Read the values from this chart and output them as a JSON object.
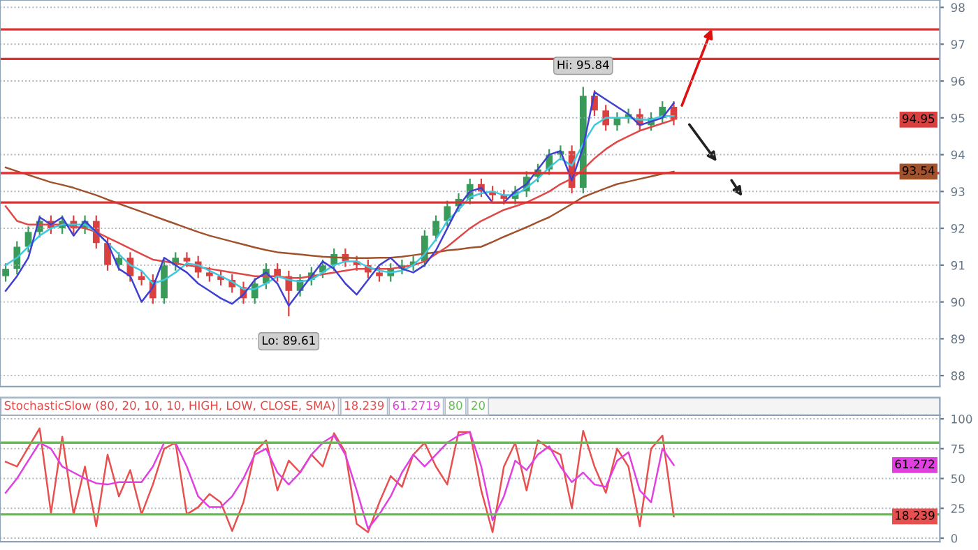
{
  "chart_data": [
    {
      "type": "candlestick",
      "categories": [
        null,
        null,
        null,
        null,
        null,
        null,
        null,
        null,
        null,
        null,
        null,
        null,
        null,
        null,
        null,
        null,
        null,
        null,
        null,
        null,
        null,
        null,
        null,
        null,
        null,
        null,
        null,
        null,
        null,
        null,
        null,
        null,
        null,
        null,
        null,
        null,
        null,
        null,
        null,
        null,
        null,
        null,
        null,
        null,
        null,
        null,
        null,
        null,
        null,
        null,
        null,
        null,
        null,
        null,
        null,
        null,
        null,
        null,
        null,
        null,
        null,
        null,
        null,
        null,
        null,
        null,
        null,
        null,
        null,
        null,
        null,
        null,
        null,
        null,
        null,
        null,
        null,
        null,
        null,
        null,
        null,
        null,
        null
      ],
      "ohlc": [
        [
          90.7,
          91.05,
          90.55,
          90.9
        ],
        [
          90.9,
          91.65,
          90.75,
          91.5
        ],
        [
          91.5,
          92.05,
          91.35,
          91.9
        ],
        [
          91.9,
          92.35,
          91.75,
          92.2
        ],
        [
          92.2,
          92.35,
          91.85,
          92.0
        ],
        [
          92.0,
          92.35,
          91.85,
          92.2
        ],
        [
          92.2,
          92.35,
          91.85,
          92.0
        ],
        [
          92.0,
          92.35,
          91.85,
          92.2
        ],
        [
          92.2,
          92.35,
          91.45,
          91.6
        ],
        [
          91.6,
          91.75,
          90.85,
          91.0
        ],
        [
          91.0,
          91.35,
          90.85,
          91.2
        ],
        [
          91.2,
          91.35,
          90.55,
          90.7
        ],
        [
          90.7,
          90.85,
          90.45,
          90.6
        ],
        [
          90.6,
          90.75,
          89.95,
          90.1
        ],
        [
          90.1,
          91.15,
          89.95,
          91.0
        ],
        [
          91.0,
          91.35,
          90.85,
          91.2
        ],
        [
          91.2,
          91.35,
          90.95,
          91.1
        ],
        [
          91.1,
          91.25,
          90.65,
          90.8
        ],
        [
          90.8,
          90.95,
          90.55,
          90.7
        ],
        [
          90.7,
          90.85,
          90.45,
          90.6
        ],
        [
          90.6,
          90.75,
          90.25,
          90.4
        ],
        [
          90.4,
          90.55,
          89.95,
          90.1
        ],
        [
          90.1,
          90.65,
          89.95,
          90.5
        ],
        [
          90.5,
          91.05,
          90.35,
          90.9
        ],
        [
          90.9,
          91.05,
          90.55,
          90.7
        ],
        [
          90.7,
          90.85,
          89.61,
          90.3
        ],
        [
          90.3,
          90.75,
          90.15,
          90.6
        ],
        [
          90.6,
          90.95,
          90.45,
          90.8
        ],
        [
          90.8,
          91.15,
          90.65,
          91.0
        ],
        [
          91.0,
          91.45,
          90.85,
          91.3
        ],
        [
          91.3,
          91.45,
          90.95,
          91.1
        ],
        [
          91.1,
          91.25,
          90.85,
          91.0
        ],
        [
          91.0,
          91.15,
          90.65,
          90.8
        ],
        [
          90.8,
          90.95,
          90.55,
          90.7
        ],
        [
          90.7,
          91.05,
          90.55,
          90.9
        ],
        [
          90.9,
          91.15,
          90.75,
          91.0
        ],
        [
          91.0,
          91.25,
          90.85,
          91.1
        ],
        [
          91.1,
          91.95,
          90.95,
          91.8
        ],
        [
          91.8,
          92.35,
          91.65,
          92.2
        ],
        [
          92.2,
          92.75,
          92.05,
          92.6
        ],
        [
          92.6,
          92.95,
          92.45,
          92.8
        ],
        [
          92.8,
          93.35,
          92.65,
          93.2
        ],
        [
          93.2,
          93.35,
          92.85,
          93.0
        ],
        [
          93.0,
          93.15,
          92.75,
          92.9
        ],
        [
          92.9,
          93.05,
          92.65,
          92.8
        ],
        [
          92.8,
          93.15,
          92.65,
          93.0
        ],
        [
          93.0,
          93.55,
          92.85,
          93.4
        ],
        [
          93.4,
          93.75,
          93.25,
          93.6
        ],
        [
          93.6,
          94.15,
          93.45,
          94.0
        ],
        [
          94.0,
          94.25,
          93.85,
          94.1
        ],
        [
          94.1,
          94.25,
          92.95,
          93.1
        ],
        [
          93.1,
          95.84,
          92.95,
          95.6
        ],
        [
          95.6,
          95.75,
          95.05,
          95.2
        ],
        [
          95.2,
          95.35,
          94.65,
          94.8
        ],
        [
          94.8,
          95.15,
          94.65,
          95.0
        ],
        [
          95.0,
          95.25,
          94.85,
          95.1
        ],
        [
          95.1,
          95.25,
          94.65,
          94.8
        ],
        [
          94.8,
          95.15,
          94.65,
          95.0
        ],
        [
          95.0,
          95.45,
          94.85,
          95.3
        ],
        [
          95.3,
          95.45,
          94.8,
          94.95
        ],
        null,
        null,
        null,
        null,
        null,
        null,
        null,
        null,
        null,
        null,
        null,
        null,
        null,
        null,
        null,
        null,
        null,
        null,
        null,
        null,
        null,
        null,
        null
      ],
      "series": [
        {
          "type": "line",
          "color": "#a0522d",
          "values": [
            93.65,
            93.55,
            93.45,
            93.35,
            93.25,
            93.18,
            93.1,
            93.0,
            92.9,
            92.78,
            92.67,
            92.56,
            92.45,
            92.34,
            92.23,
            92.12,
            92.01,
            91.9,
            91.8,
            91.72,
            91.64,
            91.56,
            91.48,
            91.41,
            91.35,
            91.32,
            91.29,
            91.26,
            91.23,
            91.21,
            91.2,
            91.19,
            91.19,
            91.2,
            91.2,
            91.23,
            91.27,
            91.31,
            91.35,
            91.4,
            91.43,
            91.47,
            91.5,
            91.63,
            91.77,
            91.9,
            92.03,
            92.17,
            92.3,
            92.48,
            92.66,
            92.85,
            92.97,
            93.09,
            93.2,
            93.27,
            93.34,
            93.41,
            93.48,
            93.54,
            null,
            null,
            null,
            null,
            null,
            null,
            null,
            null,
            null,
            null,
            null,
            null,
            null,
            null,
            null,
            null,
            null,
            null,
            null,
            null,
            null,
            null,
            null
          ]
        },
        {
          "type": "line",
          "color": "#e04848",
          "values": [
            92.6,
            92.2,
            92.1,
            92.1,
            92.1,
            92.1,
            92.05,
            92.0,
            91.9,
            91.75,
            91.6,
            91.45,
            91.3,
            91.15,
            91.1,
            91.05,
            91.0,
            90.95,
            90.9,
            90.85,
            90.8,
            90.75,
            90.7,
            90.7,
            90.7,
            90.65,
            90.65,
            90.7,
            90.75,
            90.8,
            90.85,
            90.9,
            90.9,
            90.9,
            90.9,
            90.95,
            91.0,
            91.1,
            91.3,
            91.5,
            91.75,
            92.0,
            92.2,
            92.35,
            92.5,
            92.6,
            92.7,
            92.85,
            93.0,
            93.2,
            93.35,
            93.6,
            93.9,
            94.15,
            94.35,
            94.5,
            94.65,
            94.75,
            94.85,
            94.95,
            null,
            null,
            null,
            null,
            null,
            null,
            null,
            null,
            null,
            null,
            null,
            null,
            null,
            null,
            null,
            null,
            null,
            null,
            null,
            null,
            null,
            null,
            null
          ]
        },
        {
          "type": "line",
          "color": "#40c8e0",
          "values": [
            91.0,
            91.2,
            91.5,
            91.8,
            92.0,
            92.1,
            92.1,
            92.1,
            91.9,
            91.6,
            91.3,
            91.0,
            90.85,
            90.5,
            90.6,
            90.8,
            91.05,
            91.0,
            90.85,
            90.7,
            90.55,
            90.35,
            90.35,
            90.5,
            90.7,
            90.6,
            90.55,
            90.6,
            90.8,
            91.0,
            91.1,
            91.1,
            90.95,
            90.85,
            90.8,
            90.85,
            91.0,
            91.3,
            91.7,
            92.2,
            92.5,
            92.85,
            92.95,
            93.0,
            92.9,
            92.9,
            93.1,
            93.35,
            93.65,
            93.9,
            93.7,
            94.3,
            94.8,
            95.0,
            95.0,
            95.0,
            94.95,
            94.95,
            95.05,
            95.05,
            null,
            null,
            null,
            null,
            null,
            null,
            null,
            null,
            null,
            null,
            null,
            null,
            null,
            null,
            null,
            null,
            null,
            null,
            null,
            null,
            null,
            null,
            null
          ]
        },
        {
          "type": "line",
          "color": "#4040d0",
          "values": [
            90.3,
            90.7,
            91.2,
            92.3,
            92.1,
            92.3,
            91.8,
            92.2,
            91.9,
            91.6,
            90.9,
            90.7,
            90.0,
            90.4,
            91.2,
            91.0,
            90.8,
            90.5,
            90.3,
            90.1,
            89.95,
            90.2,
            90.6,
            90.8,
            90.5,
            89.9,
            90.3,
            90.7,
            91.1,
            90.9,
            90.5,
            90.2,
            90.6,
            91.0,
            91.2,
            90.9,
            90.8,
            91.0,
            91.4,
            92.0,
            92.6,
            93.0,
            93.1,
            92.7,
            92.7,
            93.0,
            93.2,
            93.6,
            94.0,
            94.1,
            93.3,
            94.2,
            95.7,
            95.5,
            95.3,
            95.1,
            94.8,
            94.9,
            95.0,
            95.4,
            null,
            null,
            null,
            null,
            null,
            null,
            null,
            null,
            null,
            null,
            null,
            null,
            null,
            null,
            null,
            null,
            null,
            null,
            null,
            null,
            null,
            null,
            null
          ]
        }
      ],
      "ylim": [
        87.7,
        98.2
      ],
      "yticks": [
        88,
        89,
        90,
        91,
        92,
        93,
        94,
        95,
        96,
        97,
        98
      ],
      "grid": "y",
      "tick_labels": "y",
      "line_style": "solid",
      "ref_lines": [
        {
          "axis": "y",
          "value": 97.4,
          "color": "#e03030"
        },
        {
          "axis": "y",
          "value": 96.6,
          "color": "#e03030"
        },
        {
          "axis": "y",
          "value": 93.5,
          "color": "#e03030"
        },
        {
          "axis": "y",
          "value": 92.7,
          "color": "#e03030"
        }
      ],
      "annotations": [
        {
          "text": "Hi: 95.84",
          "y": 95.84
        },
        {
          "text": "Lo: 89.61",
          "y": 89.61
        },
        {
          "text": "94.95",
          "y": 94.95
        },
        {
          "text": "93.54",
          "y": 93.54
        }
      ]
    },
    {
      "type": "line",
      "title": "StochasticSlow (80, 20, 10, 10, HIGH, LOW, CLOSE, SMA)",
      "categories": [
        null,
        null,
        null,
        null,
        null,
        null,
        null,
        null,
        null,
        null,
        null,
        null,
        null,
        null,
        null,
        null,
        null,
        null,
        null,
        null,
        null,
        null,
        null,
        null,
        null,
        null,
        null,
        null,
        null,
        null,
        null,
        null,
        null,
        null,
        null,
        null,
        null,
        null,
        null,
        null,
        null,
        null,
        null,
        null,
        null,
        null,
        null,
        null,
        null,
        null,
        null,
        null,
        null,
        null,
        null,
        null,
        null,
        null,
        null,
        null,
        null,
        null,
        null,
        null,
        null,
        null,
        null,
        null,
        null,
        null,
        null,
        null,
        null,
        null,
        null,
        null,
        null,
        null,
        null,
        null,
        null,
        null,
        null
      ],
      "series": [
        {
          "color": "#e85050",
          "values": [
            64,
            60,
            76,
            92,
            21,
            85,
            20,
            60,
            10,
            70,
            35,
            57,
            20,
            45,
            75,
            80,
            20,
            26,
            37,
            30,
            6,
            30,
            72,
            82,
            40,
            65,
            55,
            70,
            60,
            88,
            72,
            12,
            5,
            30,
            52,
            43,
            70,
            80,
            60,
            45,
            89,
            89,
            40,
            5,
            60,
            80,
            40,
            82,
            75,
            70,
            25,
            90,
            60,
            38,
            75,
            60,
            10,
            75,
            86,
            18.239,
            null,
            null,
            null,
            null,
            null,
            null,
            null,
            null,
            null,
            null,
            null,
            null,
            null,
            null,
            null,
            null,
            null,
            null,
            null,
            null,
            null,
            null,
            null
          ]
        },
        {
          "color": "#e040e0",
          "values": [
            38,
            50,
            65,
            80,
            75,
            60,
            55,
            50,
            46,
            45,
            47,
            47,
            47,
            60,
            80,
            80,
            60,
            35,
            26,
            26,
            35,
            50,
            70,
            75,
            55,
            45,
            55,
            70,
            80,
            86,
            70,
            40,
            8,
            20,
            35,
            55,
            70,
            60,
            70,
            80,
            86,
            89,
            60,
            15,
            35,
            65,
            57,
            70,
            77,
            60,
            47,
            55,
            45,
            43,
            65,
            72,
            40,
            30,
            75,
            61.2719,
            null,
            null,
            null,
            null,
            null,
            null,
            null,
            null,
            null,
            null,
            null,
            null,
            null,
            null,
            null,
            null,
            null,
            null,
            null,
            null,
            null,
            null,
            null
          ]
        }
      ],
      "ylim": [
        -3,
        103
      ],
      "yticks": [
        0,
        25,
        50,
        75,
        100
      ],
      "grid": "y",
      "tick_labels": "y",
      "line_style": "solid",
      "ref_lines": [
        {
          "axis": "y",
          "value": 80,
          "color": "#66bb55"
        },
        {
          "axis": "y",
          "value": 20,
          "color": "#66bb55"
        }
      ],
      "annotations": [
        "18.239",
        "61.2719",
        "80",
        "20",
        {
          "text": "61.272",
          "y": 61.2719
        },
        {
          "text": "18.239",
          "y": 18.239
        }
      ]
    }
  ]
}
